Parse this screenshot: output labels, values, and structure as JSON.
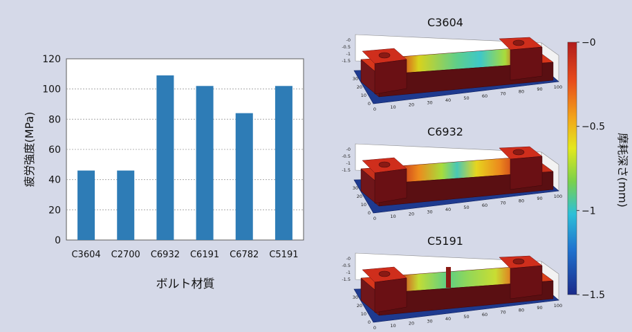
{
  "chart_data": [
    {
      "type": "bar",
      "categories": [
        "C3604",
        "C2700",
        "C6932",
        "C6191",
        "C6782",
        "C5191"
      ],
      "values": [
        46,
        46,
        109,
        102,
        84,
        102
      ],
      "xlabel": "ボルト材質",
      "ylabel": "疲労強度(MPa)",
      "ylim": [
        0,
        120
      ],
      "yticks": [
        0,
        20,
        40,
        60,
        80,
        100,
        120
      ],
      "grid": true,
      "bar_color": "#2e7cb6"
    },
    {
      "type": "surface",
      "title": "C3604",
      "zticks": [
        "-0",
        "-0.5",
        "-1",
        "-1.5"
      ],
      "xticks": [
        0,
        10,
        20,
        30,
        40,
        50,
        60,
        70,
        80,
        90,
        100
      ],
      "yticks": [
        0,
        10,
        20,
        30
      ]
    },
    {
      "type": "surface",
      "title": "C6932",
      "zticks": [
        "-0",
        "-0.5",
        "-1",
        "-1.5"
      ],
      "xticks": [
        0,
        10,
        20,
        30,
        40,
        50,
        60,
        70,
        80,
        90,
        100
      ],
      "yticks": [
        0,
        10,
        20,
        30
      ]
    },
    {
      "type": "surface",
      "title": "C5191",
      "zticks": [
        "-0",
        "-0.5",
        "-1",
        "-1.5"
      ],
      "xticks": [
        0,
        10,
        20,
        30,
        40,
        50,
        60,
        70,
        80,
        90,
        100
      ],
      "yticks": [
        0,
        10,
        20,
        30
      ]
    }
  ],
  "colorbar": {
    "label": "摩耗深さ(mm)",
    "ticks": [
      "−0",
      "−0.5",
      "−1",
      "−1.5"
    ],
    "range": [
      0,
      -1.5
    ],
    "colors": [
      "#b01c1c",
      "#e74a1c",
      "#f2a51a",
      "#e3e81d",
      "#7bd14a",
      "#2cc0d8",
      "#1f73cf",
      "#1a2a8a"
    ]
  }
}
